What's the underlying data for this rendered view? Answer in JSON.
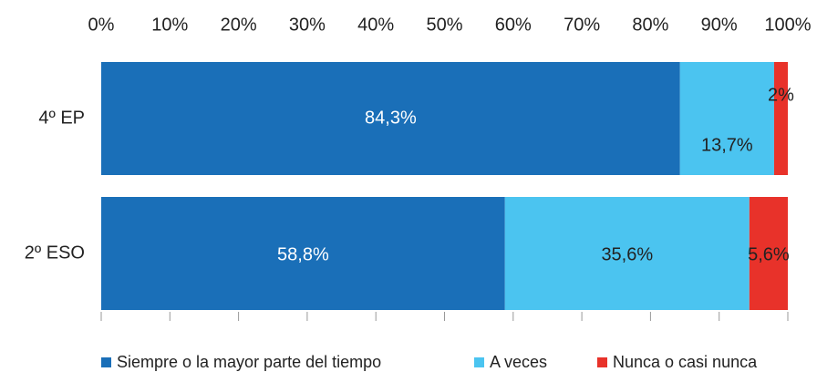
{
  "chart_data": {
    "type": "stacked-barh",
    "categories": [
      "4º EP",
      "2º ESO"
    ],
    "series": [
      {
        "name": "Siempre o la mayor parte del tiempo",
        "color": "#1a6fb8",
        "values": [
          84.3,
          58.8
        ],
        "value_labels": [
          "84,3%",
          "58,8%"
        ]
      },
      {
        "name": "A veces",
        "color": "#4bc4f0",
        "values": [
          13.7,
          35.6
        ],
        "value_labels": [
          "13,7%",
          "35,6%"
        ]
      },
      {
        "name": "Nunca o casi nunca",
        "color": "#e8322a",
        "values": [
          2,
          5.6
        ],
        "value_labels": [
          "2%",
          "5,6%"
        ]
      }
    ],
    "xlim": [
      0,
      100
    ],
    "xticks": [
      {
        "value": 0,
        "label": "0%"
      },
      {
        "value": 10,
        "label": "10%"
      },
      {
        "value": 20,
        "label": "20%"
      },
      {
        "value": 30,
        "label": "30%"
      },
      {
        "value": 40,
        "label": "40%"
      },
      {
        "value": 50,
        "label": "50%"
      },
      {
        "value": 60,
        "label": "60%"
      },
      {
        "value": 70,
        "label": "70%"
      },
      {
        "value": 80,
        "label": "80%"
      },
      {
        "value": 90,
        "label": "90%"
      },
      {
        "value": 100,
        "label": "100%"
      }
    ],
    "legend": "bottom"
  }
}
